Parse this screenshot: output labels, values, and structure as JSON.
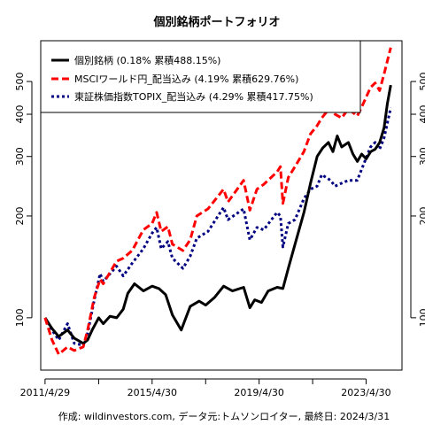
{
  "chart_data": {
    "type": "line",
    "title": "個別銘柄ポートフォリオ",
    "caption": "作成: wildinvestors.com, データ元:トムソンロイター, 最終日: 2024/3/31",
    "xlabel": "",
    "ylabel": "",
    "y_scale": "log",
    "ylim": [
      70,
      660
    ],
    "xlim": [
      "2011-03-01",
      "2024-09-01"
    ],
    "grid": false,
    "legend_position": "top-left",
    "x_ticks": [
      {
        "date": "2011-04-29",
        "label": "2011/4/29"
      },
      {
        "date": "2013-04-30",
        "label": ""
      },
      {
        "date": "2015-04-30",
        "label": "2015/4/30"
      },
      {
        "date": "2017-04-30",
        "label": ""
      },
      {
        "date": "2019-04-30",
        "label": "2019/4/30"
      },
      {
        "date": "2021-04-30",
        "label": ""
      },
      {
        "date": "2023-04-30",
        "label": "2023/4/30"
      }
    ],
    "y_ticks": [
      {
        "value": 100,
        "label": "100"
      },
      {
        "value": 200,
        "label": "200"
      },
      {
        "value": 300,
        "label": "300"
      },
      {
        "value": 400,
        "label": "400"
      },
      {
        "value": 500,
        "label": "500"
      }
    ],
    "series": [
      {
        "name": "個別銘柄 (0.18% 累積488.15%)",
        "color": "#000000",
        "style": "solid",
        "points": [
          [
            "2011-04-29",
            100
          ],
          [
            "2011-08-01",
            93
          ],
          [
            "2011-11-01",
            88
          ],
          [
            "2012-03-01",
            92
          ],
          [
            "2012-06-01",
            87
          ],
          [
            "2012-10-01",
            84
          ],
          [
            "2012-12-01",
            86
          ],
          [
            "2013-02-01",
            92
          ],
          [
            "2013-05-01",
            100
          ],
          [
            "2013-07-01",
            96
          ],
          [
            "2013-10-01",
            101
          ],
          [
            "2014-01-01",
            100
          ],
          [
            "2014-04-01",
            106
          ],
          [
            "2014-06-01",
            118
          ],
          [
            "2014-09-01",
            126
          ],
          [
            "2015-01-01",
            120
          ],
          [
            "2015-04-30",
            124
          ],
          [
            "2015-08-01",
            122
          ],
          [
            "2015-11-01",
            117
          ],
          [
            "2016-02-01",
            102
          ],
          [
            "2016-06-01",
            92
          ],
          [
            "2016-10-01",
            108
          ],
          [
            "2017-02-01",
            112
          ],
          [
            "2017-05-01",
            109
          ],
          [
            "2017-09-01",
            115
          ],
          [
            "2018-01-01",
            124
          ],
          [
            "2018-05-01",
            120
          ],
          [
            "2018-10-01",
            123
          ],
          [
            "2018-12-25",
            107
          ],
          [
            "2019-03-01",
            113
          ],
          [
            "2019-06-01",
            111
          ],
          [
            "2019-09-01",
            120
          ],
          [
            "2020-01-01",
            123
          ],
          [
            "2020-03-20",
            122
          ],
          [
            "2020-06-01",
            140
          ],
          [
            "2020-09-01",
            165
          ],
          [
            "2021-01-01",
            205
          ],
          [
            "2021-04-01",
            250
          ],
          [
            "2021-07-01",
            300
          ],
          [
            "2021-09-15",
            318
          ],
          [
            "2021-12-01",
            330
          ],
          [
            "2022-02-01",
            310
          ],
          [
            "2022-04-01",
            345
          ],
          [
            "2022-06-01",
            320
          ],
          [
            "2022-09-01",
            330
          ],
          [
            "2022-11-01",
            305
          ],
          [
            "2023-01-01",
            290
          ],
          [
            "2023-03-01",
            305
          ],
          [
            "2023-05-01",
            295
          ],
          [
            "2023-07-01",
            310
          ],
          [
            "2023-09-01",
            315
          ],
          [
            "2023-11-01",
            330
          ],
          [
            "2024-01-01",
            365
          ],
          [
            "2024-02-15",
            430
          ],
          [
            "2024-03-31",
            488
          ]
        ]
      },
      {
        "name": "MSCIワールド円_配当込み (4.19% 累積629.76%)",
        "color": "#ff0000",
        "style": "dashed",
        "points": [
          [
            "2011-04-29",
            100
          ],
          [
            "2011-08-01",
            86
          ],
          [
            "2011-11-01",
            78
          ],
          [
            "2012-03-01",
            82
          ],
          [
            "2012-06-01",
            80
          ],
          [
            "2012-10-01",
            82
          ],
          [
            "2012-12-01",
            92
          ],
          [
            "2013-03-01",
            115
          ],
          [
            "2013-05-20",
            130
          ],
          [
            "2013-07-01",
            126
          ],
          [
            "2013-12-31",
            147
          ],
          [
            "2014-04-01",
            150
          ],
          [
            "2014-08-01",
            158
          ],
          [
            "2014-12-31",
            182
          ],
          [
            "2015-04-30",
            190
          ],
          [
            "2015-07-01",
            205
          ],
          [
            "2015-09-01",
            180
          ],
          [
            "2015-12-01",
            186
          ],
          [
            "2016-02-01",
            165
          ],
          [
            "2016-06-24",
            158
          ],
          [
            "2016-10-01",
            170
          ],
          [
            "2016-12-31",
            200
          ],
          [
            "2017-06-01",
            210
          ],
          [
            "2017-12-31",
            240
          ],
          [
            "2018-03-01",
            220
          ],
          [
            "2018-09-30",
            255
          ],
          [
            "2018-12-25",
            208
          ],
          [
            "2019-04-01",
            240
          ],
          [
            "2019-07-01",
            248
          ],
          [
            "2019-12-31",
            270
          ],
          [
            "2020-02-15",
            280
          ],
          [
            "2020-03-20",
            218
          ],
          [
            "2020-06-01",
            260
          ],
          [
            "2020-09-01",
            280
          ],
          [
            "2020-12-31",
            310
          ],
          [
            "2021-04-01",
            350
          ],
          [
            "2021-06-30",
            370
          ],
          [
            "2021-09-01",
            390
          ],
          [
            "2021-12-31",
            420
          ],
          [
            "2022-03-01",
            400
          ],
          [
            "2022-06-01",
            390
          ],
          [
            "2022-09-01",
            415
          ],
          [
            "2022-12-31",
            395
          ],
          [
            "2023-03-01",
            420
          ],
          [
            "2023-06-30",
            480
          ],
          [
            "2023-09-01",
            495
          ],
          [
            "2023-10-31",
            470
          ],
          [
            "2023-12-31",
            525
          ],
          [
            "2024-03-31",
            630
          ]
        ]
      },
      {
        "name": "東証株価指数TOPIX_配当込み (4.29% 累積417.75%)",
        "color": "#000080",
        "style": "dotted",
        "points": [
          [
            "2011-04-29",
            100
          ],
          [
            "2011-08-01",
            92
          ],
          [
            "2011-11-01",
            86
          ],
          [
            "2012-03-01",
            96
          ],
          [
            "2012-06-01",
            84
          ],
          [
            "2012-10-01",
            83
          ],
          [
            "2012-12-01",
            90
          ],
          [
            "2013-03-01",
            113
          ],
          [
            "2013-05-20",
            135
          ],
          [
            "2013-07-01",
            128
          ],
          [
            "2013-12-31",
            142
          ],
          [
            "2014-04-01",
            133
          ],
          [
            "2014-08-01",
            145
          ],
          [
            "2014-12-31",
            160
          ],
          [
            "2015-04-30",
            178
          ],
          [
            "2015-07-01",
            185
          ],
          [
            "2015-09-01",
            160
          ],
          [
            "2015-12-01",
            168
          ],
          [
            "2016-02-01",
            150
          ],
          [
            "2016-06-24",
            140
          ],
          [
            "2016-10-01",
            152
          ],
          [
            "2016-12-31",
            172
          ],
          [
            "2017-06-01",
            180
          ],
          [
            "2017-12-31",
            212
          ],
          [
            "2018-03-01",
            195
          ],
          [
            "2018-09-30",
            210
          ],
          [
            "2018-12-25",
            170
          ],
          [
            "2019-04-01",
            185
          ],
          [
            "2019-07-01",
            182
          ],
          [
            "2019-12-31",
            205
          ],
          [
            "2020-02-15",
            200
          ],
          [
            "2020-03-20",
            162
          ],
          [
            "2020-06-01",
            190
          ],
          [
            "2020-09-01",
            195
          ],
          [
            "2020-12-31",
            225
          ],
          [
            "2021-04-01",
            240
          ],
          [
            "2021-06-30",
            245
          ],
          [
            "2021-09-01",
            265
          ],
          [
            "2021-12-31",
            255
          ],
          [
            "2022-03-01",
            245
          ],
          [
            "2022-06-01",
            250
          ],
          [
            "2022-09-01",
            255
          ],
          [
            "2022-12-31",
            255
          ],
          [
            "2023-03-01",
            275
          ],
          [
            "2023-06-30",
            320
          ],
          [
            "2023-09-01",
            330
          ],
          [
            "2023-10-31",
            315
          ],
          [
            "2023-12-31",
            340
          ],
          [
            "2024-03-31",
            418
          ]
        ]
      }
    ]
  }
}
